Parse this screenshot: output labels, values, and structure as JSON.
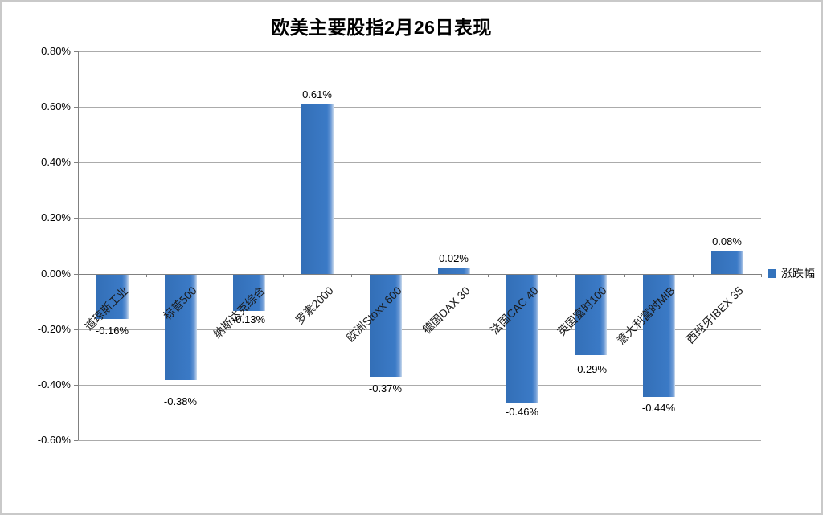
{
  "page": {
    "background": "#FFFFFF",
    "border_color": "#C9C9C9"
  },
  "legend": {
    "label": "涨跌幅"
  },
  "chart_data": {
    "type": "bar",
    "title": "欧美主要股指2月26日表现",
    "series_name": "涨跌幅",
    "categories": [
      "道琼斯工业",
      "标普500",
      "纳斯达克综合",
      "罗素2000",
      "欧洲Stoxx 600",
      "德国DAX 30",
      "法国CAC 40",
      "英国富时100",
      "意大利富时MIB",
      "西班牙IBEX 35"
    ],
    "values": [
      -0.16,
      -0.38,
      -0.13,
      0.61,
      -0.37,
      0.02,
      -0.46,
      -0.29,
      -0.44,
      0.08
    ],
    "value_labels": [
      "-0.16%",
      "-0.38%",
      "-0.13%",
      "0.61%",
      "-0.37%",
      "0.02%",
      "-0.46%",
      "-0.29%",
      "-0.44%",
      "0.08%"
    ],
    "xlabel": "",
    "ylabel": "",
    "unit": "%",
    "ylim": [
      -0.6,
      0.8
    ],
    "yticks": [
      0.8,
      0.6,
      0.4,
      0.2,
      0,
      -0.2,
      -0.4,
      -0.6
    ],
    "ytick_labels": [
      "0.80%",
      "0.60%",
      "0.40%",
      "0.20%",
      "0.00%",
      "-0.20%",
      "-0.40%",
      "-0.60%"
    ],
    "grid": true,
    "legend_position": "right",
    "colors": {
      "bar": "#3B7AC6",
      "bar_edge_highlight": "#C9D9EC",
      "gridline": "#ABABAB",
      "axis": "#808080",
      "text": "#000000"
    }
  }
}
